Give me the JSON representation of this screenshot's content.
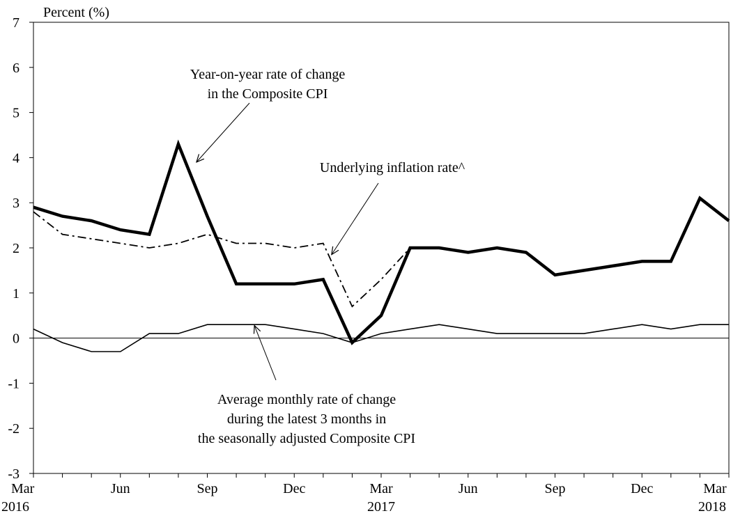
{
  "chart_data": {
    "type": "line",
    "ylabel": "Percent (%)",
    "ylim": [
      -3,
      7
    ],
    "yticks": [
      -3,
      -2,
      -1,
      0,
      1,
      2,
      3,
      4,
      5,
      6,
      7
    ],
    "x": [
      "2016-03",
      "2016-04",
      "2016-05",
      "2016-06",
      "2016-07",
      "2016-08",
      "2016-09",
      "2016-10",
      "2016-11",
      "2016-12",
      "2017-01",
      "2017-02",
      "2017-03",
      "2017-04",
      "2017-05",
      "2017-06",
      "2017-07",
      "2017-08",
      "2017-09",
      "2017-10",
      "2017-11",
      "2017-12",
      "2018-01",
      "2018-02",
      "2018-03"
    ],
    "xticks": [
      {
        "month": "Mar",
        "year": "2016",
        "index": 0
      },
      {
        "month": "Jun",
        "year": "",
        "index": 3
      },
      {
        "month": "Sep",
        "year": "",
        "index": 6
      },
      {
        "month": "Dec",
        "year": "",
        "index": 9
      },
      {
        "month": "Mar",
        "year": "2017",
        "index": 12
      },
      {
        "month": "Jun",
        "year": "",
        "index": 15
      },
      {
        "month": "Sep",
        "year": "",
        "index": 18
      },
      {
        "month": "Dec",
        "year": "",
        "index": 21
      },
      {
        "month": "Mar",
        "year": "2018",
        "index": 24
      }
    ],
    "series": [
      {
        "key": "composite",
        "style": "thick-solid",
        "values": [
          2.9,
          2.7,
          2.6,
          2.4,
          2.3,
          4.3,
          2.7,
          1.2,
          1.2,
          1.2,
          1.3,
          -0.1,
          0.5,
          2.0,
          2.0,
          1.9,
          2.0,
          1.9,
          1.4,
          1.5,
          1.6,
          1.7,
          1.7,
          3.1,
          2.6
        ]
      },
      {
        "key": "underlying",
        "style": "dash-dot",
        "values": [
          2.8,
          2.3,
          2.2,
          2.1,
          2.0,
          2.1,
          2.3,
          2.1,
          2.1,
          2.0,
          2.1,
          0.7,
          1.3,
          2.0,
          null,
          null,
          null,
          null,
          null,
          null,
          null,
          null,
          null,
          null,
          null
        ]
      },
      {
        "key": "monthly_avg",
        "style": "thin-solid",
        "values": [
          0.2,
          -0.1,
          -0.3,
          -0.3,
          0.1,
          0.1,
          0.3,
          0.3,
          0.3,
          0.2,
          0.1,
          -0.1,
          0.1,
          0.2,
          0.3,
          0.2,
          0.1,
          0.1,
          0.1,
          0.1,
          0.2,
          0.3,
          0.2,
          0.3,
          0.3
        ]
      }
    ],
    "annotations": [
      {
        "series": "composite",
        "lines": [
          "Year-on-year rate of change",
          "in the Composite CPI"
        ],
        "point": {
          "x": "2016-08",
          "y": 3.9
        }
      },
      {
        "series": "underlying",
        "lines": [
          "Underlying inflation rate^"
        ],
        "point": {
          "x": "2017-01",
          "y": 1.85
        }
      },
      {
        "series": "monthly_avg",
        "lines": [
          "Average monthly rate of change",
          "during the latest 3 months in",
          "the seasonally adjusted Composite CPI"
        ],
        "point": {
          "x": "2016-10",
          "y": 0.28
        }
      }
    ],
    "grid": false,
    "zero_line": true
  }
}
